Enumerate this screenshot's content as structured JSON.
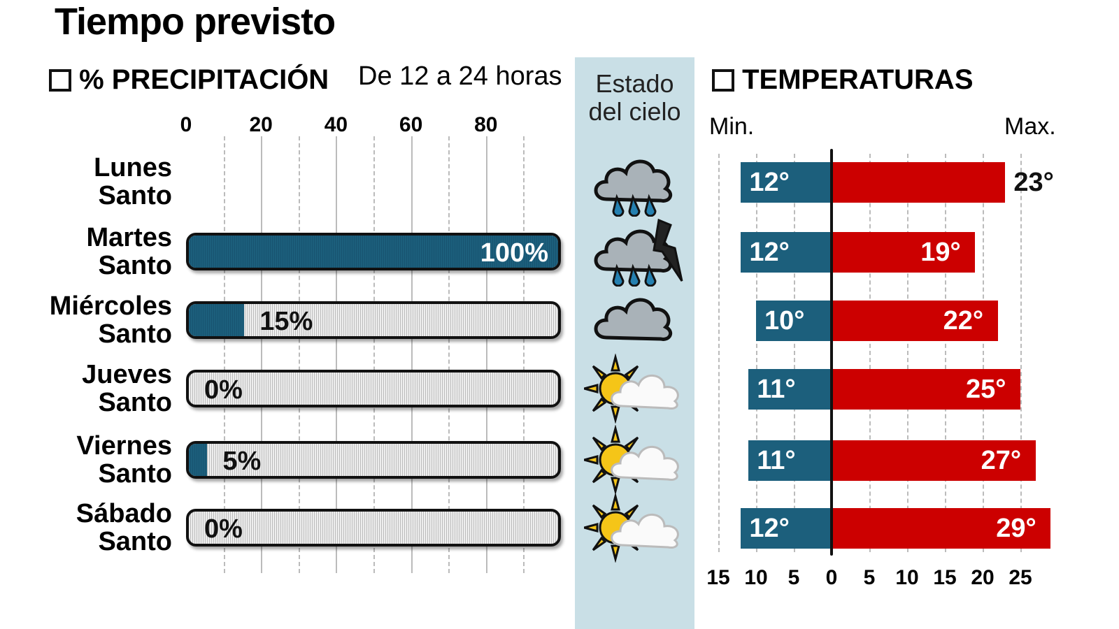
{
  "title": "Tiempo previsto",
  "precip": {
    "header": "% PRECIPITACIÓN",
    "subheader": "De 12 a 24 horas"
  },
  "sky": {
    "header_line1": "Estado",
    "header_line2": "del cielo"
  },
  "temps": {
    "header": "TEMPERATURAS",
    "min_label": "Min.",
    "max_label": "Max."
  },
  "colors": {
    "precip": "#1c5f7c",
    "min": "#1c5f7c",
    "max": "#cc0000",
    "sky_panel": "#c9dfe6"
  },
  "chart_data": [
    {
      "type": "bar",
      "orientation": "horizontal",
      "title": "% PRECIPITACIÓN",
      "subtitle": "De 12 a 24 horas",
      "categories": [
        [
          "Lunes",
          "Santo"
        ],
        [
          "Martes",
          "Santo"
        ],
        [
          "Miércoles",
          "Santo"
        ],
        [
          "Jueves",
          "Santo"
        ],
        [
          "Viernes",
          "Santo"
        ],
        [
          "Sábado",
          "Santo"
        ]
      ],
      "values": [
        null,
        100,
        15,
        0,
        5,
        0
      ],
      "labels": [
        "",
        "100%",
        "15%",
        "0%",
        "5%",
        "0%"
      ],
      "xticks": [
        "0",
        "20",
        "40",
        "60",
        "80"
      ],
      "xlim": [
        0,
        100
      ],
      "grid": true
    },
    {
      "type": "bar",
      "orientation": "horizontal",
      "title": "TEMPERATURAS",
      "diverging": true,
      "categories": [
        [
          "Lunes",
          "Santo"
        ],
        [
          "Martes",
          "Santo"
        ],
        [
          "Miércoles",
          "Santo"
        ],
        [
          "Jueves",
          "Santo"
        ],
        [
          "Viernes",
          "Santo"
        ],
        [
          "Sábado",
          "Santo"
        ]
      ],
      "series": [
        {
          "name": "Min.",
          "values": [
            12,
            12,
            10,
            11,
            11,
            12
          ],
          "labels": [
            "12°",
            "12°",
            "10°",
            "11°",
            "11°",
            "12°"
          ]
        },
        {
          "name": "Max.",
          "values": [
            23,
            19,
            22,
            25,
            27,
            29
          ],
          "labels": [
            "23°",
            "19°",
            "22°",
            "25°",
            "27°",
            "29°"
          ]
        }
      ],
      "xticks": [
        "15",
        "10",
        "5",
        "0",
        "5",
        "10",
        "15",
        "20",
        "25"
      ],
      "xlim": [
        -15,
        30
      ],
      "grid": true
    }
  ],
  "sky_icons": [
    "cloud-rain-icon",
    "cloud-rain-lightning-icon",
    "cloud-icon",
    "sun-cloud-icon",
    "sun-cloud-icon",
    "sun-cloud-icon"
  ]
}
